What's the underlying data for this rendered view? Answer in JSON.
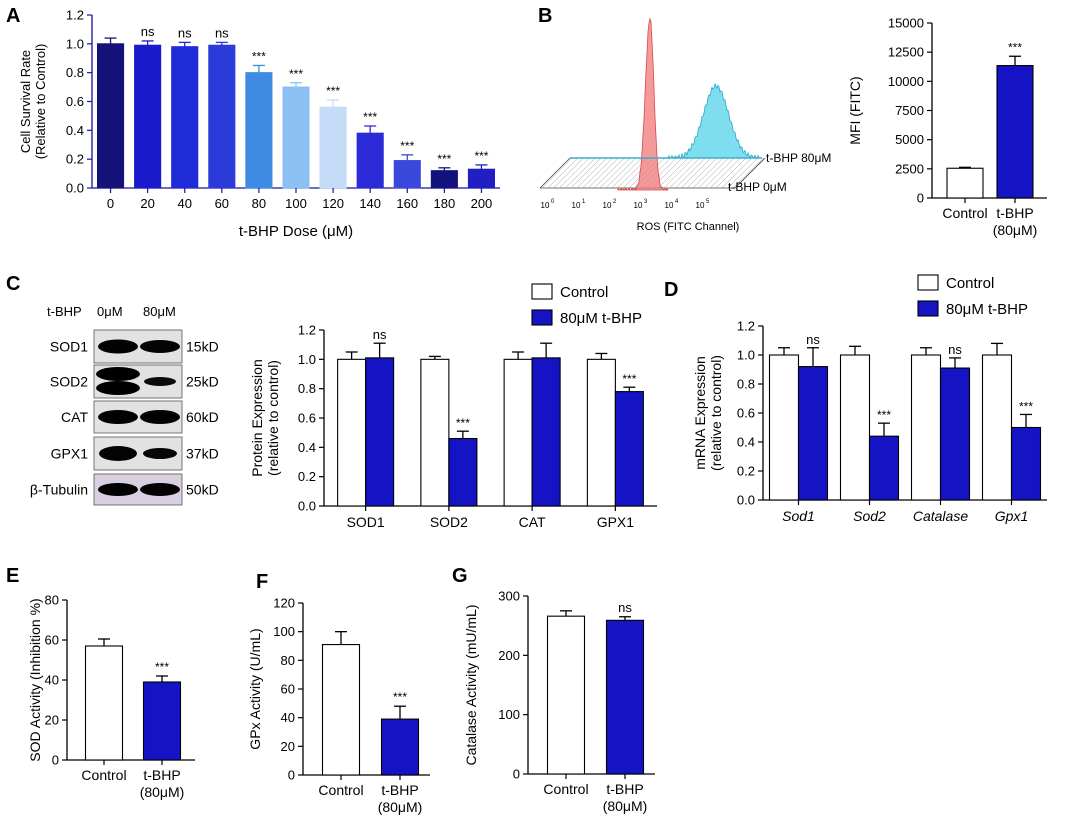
{
  "panel_letters": {
    "A": "A",
    "B": "B",
    "C": "C",
    "D": "D",
    "E": "E",
    "F": "F",
    "G": "G"
  },
  "colors": {
    "navy": "#12137a",
    "blue": "#1414c4",
    "cyan": "#5fd4ec",
    "red": "#f07878",
    "gray": "#8f8f8f"
  },
  "flow": {
    "xlabel": "ROS (FITC Channel)",
    "tick_labels": [
      "10",
      "10",
      "10",
      "10",
      "10",
      "10"
    ],
    "tick_exps": [
      "0",
      "1",
      "2",
      "3",
      "4",
      "5"
    ],
    "label_top": "t-BHP 80μM",
    "label_bottom": "t-BHP 0μM"
  },
  "blot": {
    "header_treat": "t-BHP",
    "header_lane1": "0μM",
    "header_lane2": "80μM",
    "proteins": [
      "SOD1",
      "SOD2",
      "CAT",
      "GPX1",
      "β-Tubulin"
    ],
    "sizes": [
      "15kD",
      "25kD",
      "60kD",
      "37kD",
      "50kD"
    ]
  },
  "chart_data": [
    {
      "id": "A",
      "type": "bar",
      "categories": [
        "0",
        "20",
        "40",
        "60",
        "80",
        "100",
        "120",
        "140",
        "160",
        "180",
        "200"
      ],
      "values": [
        1.0,
        0.99,
        0.98,
        0.99,
        0.8,
        0.7,
        0.56,
        0.38,
        0.19,
        0.12,
        0.13
      ],
      "errors": [
        0.04,
        0.03,
        0.03,
        0.02,
        0.05,
        0.03,
        0.05,
        0.05,
        0.04,
        0.02,
        0.03
      ],
      "annotations": [
        "",
        "ns",
        "ns",
        "ns",
        "***",
        "***",
        "***",
        "***",
        "***",
        "***",
        "***"
      ],
      "bar_colors": [
        "#15137a",
        "#1a1acd",
        "#1f2bd6",
        "#2c3ad9",
        "#3f8be4",
        "#8cc0f2",
        "#c5dcf8",
        "#2b2bd7",
        "#3b48dc",
        "#12127a",
        "#1f1fc4"
      ],
      "xlabel": "t-BHP Dose (μM)",
      "ylabel": [
        "Cell Survival Rate",
        "(Relative to Control)"
      ],
      "ylim": [
        0,
        1.2
      ],
      "yticks": [
        0,
        0.2,
        0.4,
        0.6,
        0.8,
        1.0,
        1.2
      ],
      "ytick_labels": [
        "0.0",
        "0.2",
        "0.4",
        "0.6",
        "0.8",
        "1.0",
        "1.2"
      ]
    },
    {
      "id": "B",
      "type": "bar",
      "categories": [
        "Control",
        "t-BHP"
      ],
      "category_sub": [
        "",
        "(80μM)"
      ],
      "values": [
        2550,
        11350
      ],
      "errors": [
        80,
        800
      ],
      "annotations": [
        "",
        "***"
      ],
      "ylabel": [
        "MFI (FITC)"
      ],
      "ylim": [
        0,
        15000
      ],
      "yticks": [
        0,
        2500,
        5000,
        7500,
        10000,
        12500,
        15000
      ],
      "ytick_labels": [
        "0",
        "2500",
        "5000",
        "7500",
        "10000",
        "12500",
        "15000"
      ]
    },
    {
      "id": "C",
      "type": "bar",
      "categories": [
        "SOD1",
        "SOD2",
        "CAT",
        "GPX1"
      ],
      "series": [
        {
          "name": "Control",
          "values": [
            1.0,
            1.0,
            1.0,
            1.0
          ],
          "errors": [
            0.05,
            0.02,
            0.05,
            0.04
          ]
        },
        {
          "name": "80μM t-BHP",
          "values": [
            1.01,
            0.46,
            1.01,
            0.78
          ],
          "errors": [
            0.1,
            0.05,
            0.1,
            0.03
          ]
        }
      ],
      "annotations": [
        "ns",
        "***",
        "",
        "***"
      ],
      "ylabel": [
        "Protein Expression",
        "(relative to control)"
      ],
      "ylim": [
        0,
        1.2
      ],
      "yticks": [
        0,
        0.2,
        0.4,
        0.6,
        0.8,
        1.0,
        1.2
      ],
      "ytick_labels": [
        "0.0",
        "0.2",
        "0.4",
        "0.6",
        "0.8",
        "1.0",
        "1.2"
      ],
      "legend": [
        "Control",
        "80μM t-BHP"
      ]
    },
    {
      "id": "D",
      "type": "bar",
      "categories": [
        "Sod1",
        "Sod2",
        "Catalase",
        "Gpx1"
      ],
      "series": [
        {
          "name": "Control",
          "values": [
            1.0,
            1.0,
            1.0,
            1.0
          ],
          "errors": [
            0.05,
            0.06,
            0.05,
            0.08
          ]
        },
        {
          "name": "80μM t-BHP",
          "values": [
            0.92,
            0.44,
            0.91,
            0.5
          ],
          "errors": [
            0.13,
            0.09,
            0.07,
            0.09
          ]
        }
      ],
      "annotations": [
        "ns",
        "***",
        "ns",
        "***"
      ],
      "ylabel": [
        "mRNA Expression",
        "(relative to control)"
      ],
      "ylim": [
        0,
        1.2
      ],
      "yticks": [
        0,
        0.2,
        0.4,
        0.6,
        0.8,
        1.0,
        1.2
      ],
      "ytick_labels": [
        "0.0",
        "0.2",
        "0.4",
        "0.6",
        "0.8",
        "1.0",
        "1.2"
      ],
      "legend": [
        "Control",
        "80μM t-BHP"
      ]
    },
    {
      "id": "E",
      "type": "bar",
      "categories": [
        "Control",
        "t-BHP"
      ],
      "category_sub": [
        "",
        "(80μM)"
      ],
      "values": [
        57,
        39
      ],
      "errors": [
        3.5,
        3
      ],
      "annotations": [
        "",
        "***"
      ],
      "ylabel": [
        "SOD Activity (Inhibition %)"
      ],
      "ylim": [
        0,
        80
      ],
      "yticks": [
        0,
        20,
        40,
        60,
        80
      ],
      "ytick_labels": [
        "0",
        "20",
        "40",
        "60",
        "80"
      ]
    },
    {
      "id": "F",
      "type": "bar",
      "categories": [
        "Control",
        "t-BHP"
      ],
      "category_sub": [
        "",
        "(80μM)"
      ],
      "values": [
        91,
        39
      ],
      "errors": [
        9,
        9
      ],
      "annotations": [
        "",
        "***"
      ],
      "ylabel": [
        "GPx Activity (U/mL)"
      ],
      "ylim": [
        0,
        120
      ],
      "yticks": [
        0,
        20,
        40,
        60,
        80,
        100,
        120
      ],
      "ytick_labels": [
        "0",
        "20",
        "40",
        "60",
        "80",
        "100",
        "120"
      ]
    },
    {
      "id": "G",
      "type": "bar",
      "categories": [
        "Control",
        "t-BHP"
      ],
      "category_sub": [
        "",
        "(80μM)"
      ],
      "values": [
        266,
        259
      ],
      "errors": [
        9,
        6
      ],
      "annotations": [
        "",
        "ns"
      ],
      "ylabel": [
        "Catalase Activity (mU/mL)"
      ],
      "ylim": [
        0,
        300
      ],
      "yticks": [
        0,
        100,
        200,
        300
      ],
      "ytick_labels": [
        "0",
        "100",
        "200",
        "300"
      ]
    }
  ]
}
